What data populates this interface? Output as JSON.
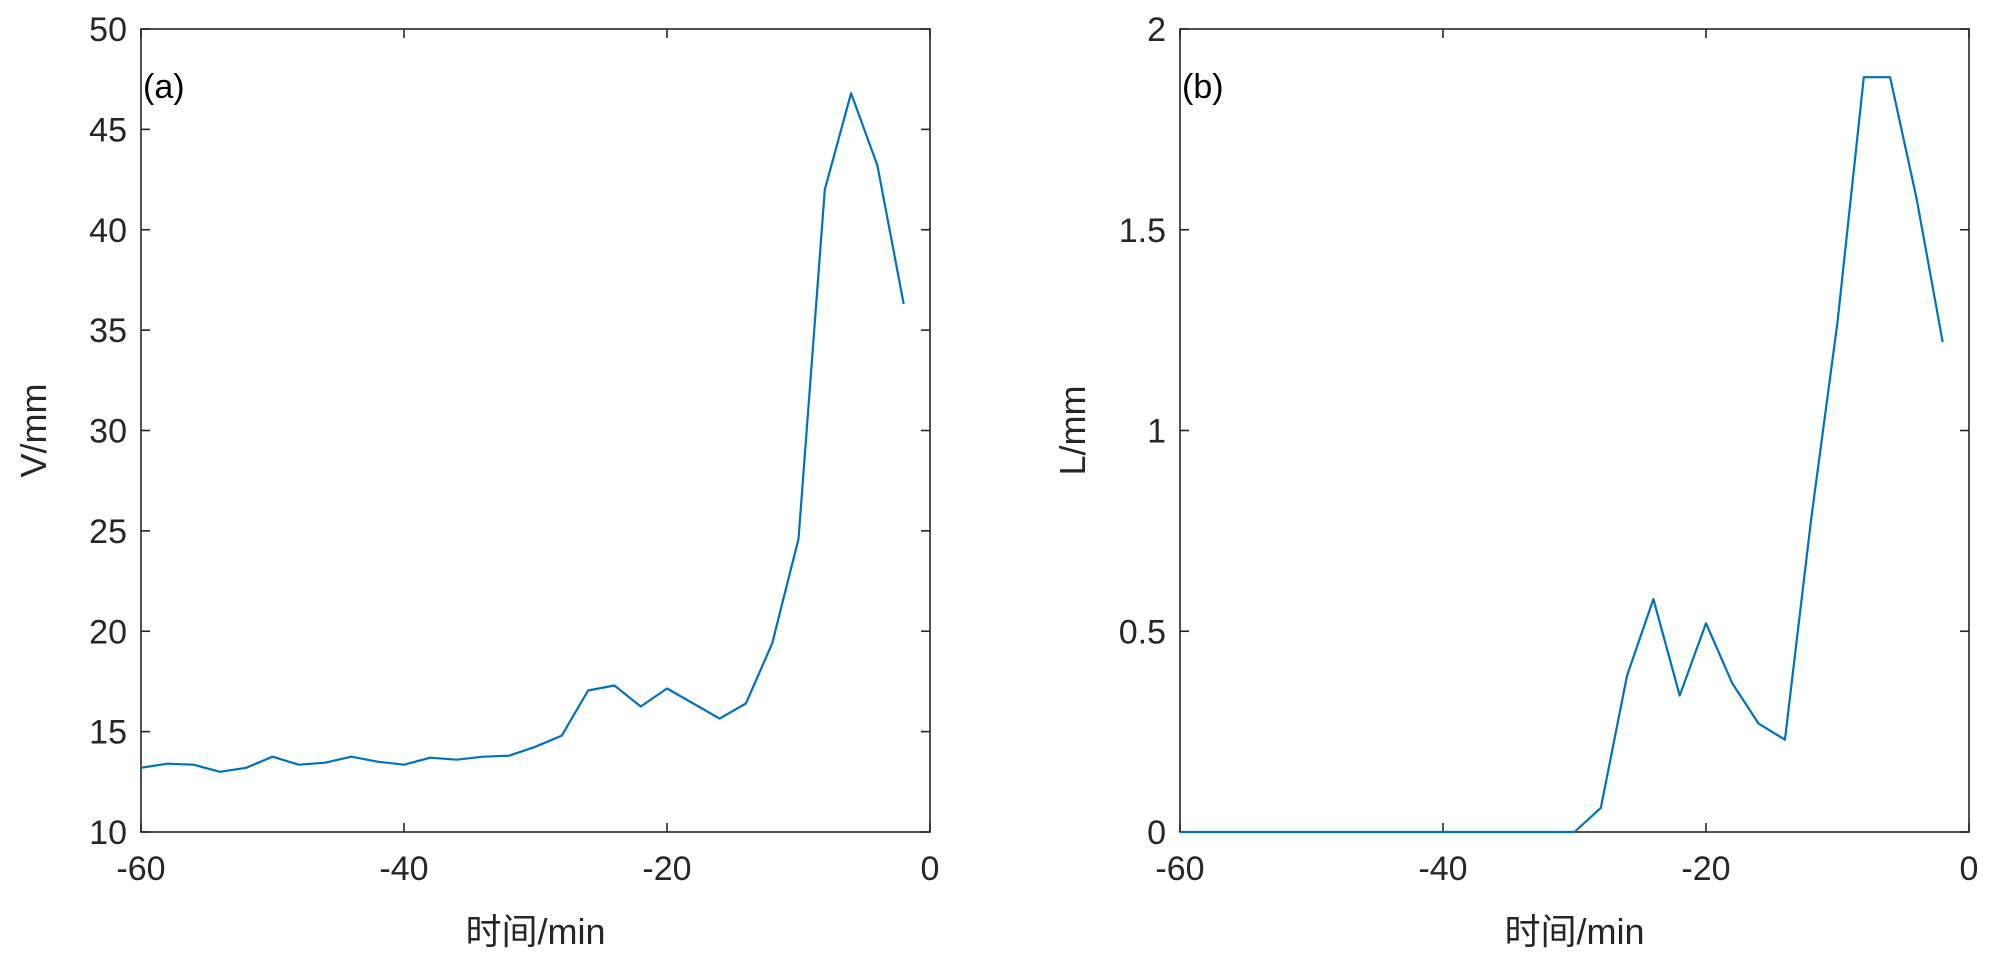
{
  "chart_data": [
    {
      "type": "line",
      "panel_label": "(a)",
      "xlabel": "时间/min",
      "ylabel": "V/mm",
      "xlim": [
        -60,
        0
      ],
      "ylim": [
        10,
        50
      ],
      "x_ticks": [
        "-60",
        "-40",
        "-20",
        "0"
      ],
      "y_ticks": [
        "10",
        "15",
        "20",
        "25",
        "30",
        "35",
        "40",
        "45",
        "50"
      ],
      "series": [
        {
          "color": "#0072BD",
          "x": [
            -60,
            -58,
            -56,
            -54,
            -52,
            -50,
            -48,
            -46,
            -44,
            -42,
            -40,
            -38,
            -36,
            -34,
            -32,
            -30,
            -28,
            -26,
            -24,
            -22,
            -20,
            -18,
            -16,
            -14,
            -12,
            -10,
            -8,
            -6,
            -4,
            -2
          ],
          "y": [
            13.2,
            13.4,
            13.35,
            13.0,
            13.2,
            13.75,
            13.35,
            13.45,
            13.75,
            13.5,
            13.35,
            13.7,
            13.6,
            13.75,
            13.8,
            14.25,
            14.8,
            17.05,
            17.3,
            16.25,
            17.15,
            16.4,
            15.65,
            16.4,
            19.4,
            24.6,
            42.0,
            46.8,
            43.2,
            36.3
          ]
        }
      ]
    },
    {
      "type": "line",
      "panel_label": "(b)",
      "xlabel": "时间/min",
      "ylabel": "L/mm",
      "xlim": [
        -60,
        0
      ],
      "ylim": [
        0,
        2
      ],
      "x_ticks": [
        "-60",
        "-40",
        "-20",
        "0"
      ],
      "y_ticks": [
        "0",
        "0.5",
        "1",
        "1.5",
        "2"
      ],
      "series": [
        {
          "color": "#0072BD",
          "x": [
            -60,
            -58,
            -56,
            -54,
            -52,
            -50,
            -48,
            -46,
            -44,
            -42,
            -40,
            -38,
            -36,
            -34,
            -32,
            -30,
            -28,
            -26,
            -24,
            -22,
            -20,
            -18,
            -16,
            -14,
            -12,
            -10,
            -8,
            -6,
            -4,
            -2
          ],
          "y": [
            0,
            0,
            0,
            0,
            0,
            0,
            0,
            0,
            0,
            0,
            0,
            0,
            0,
            0,
            0,
            0,
            0.06,
            0.39,
            0.58,
            0.34,
            0.52,
            0.37,
            0.27,
            0.23,
            0.78,
            1.27,
            1.88,
            1.88,
            1.58,
            1.22
          ]
        }
      ]
    }
  ]
}
